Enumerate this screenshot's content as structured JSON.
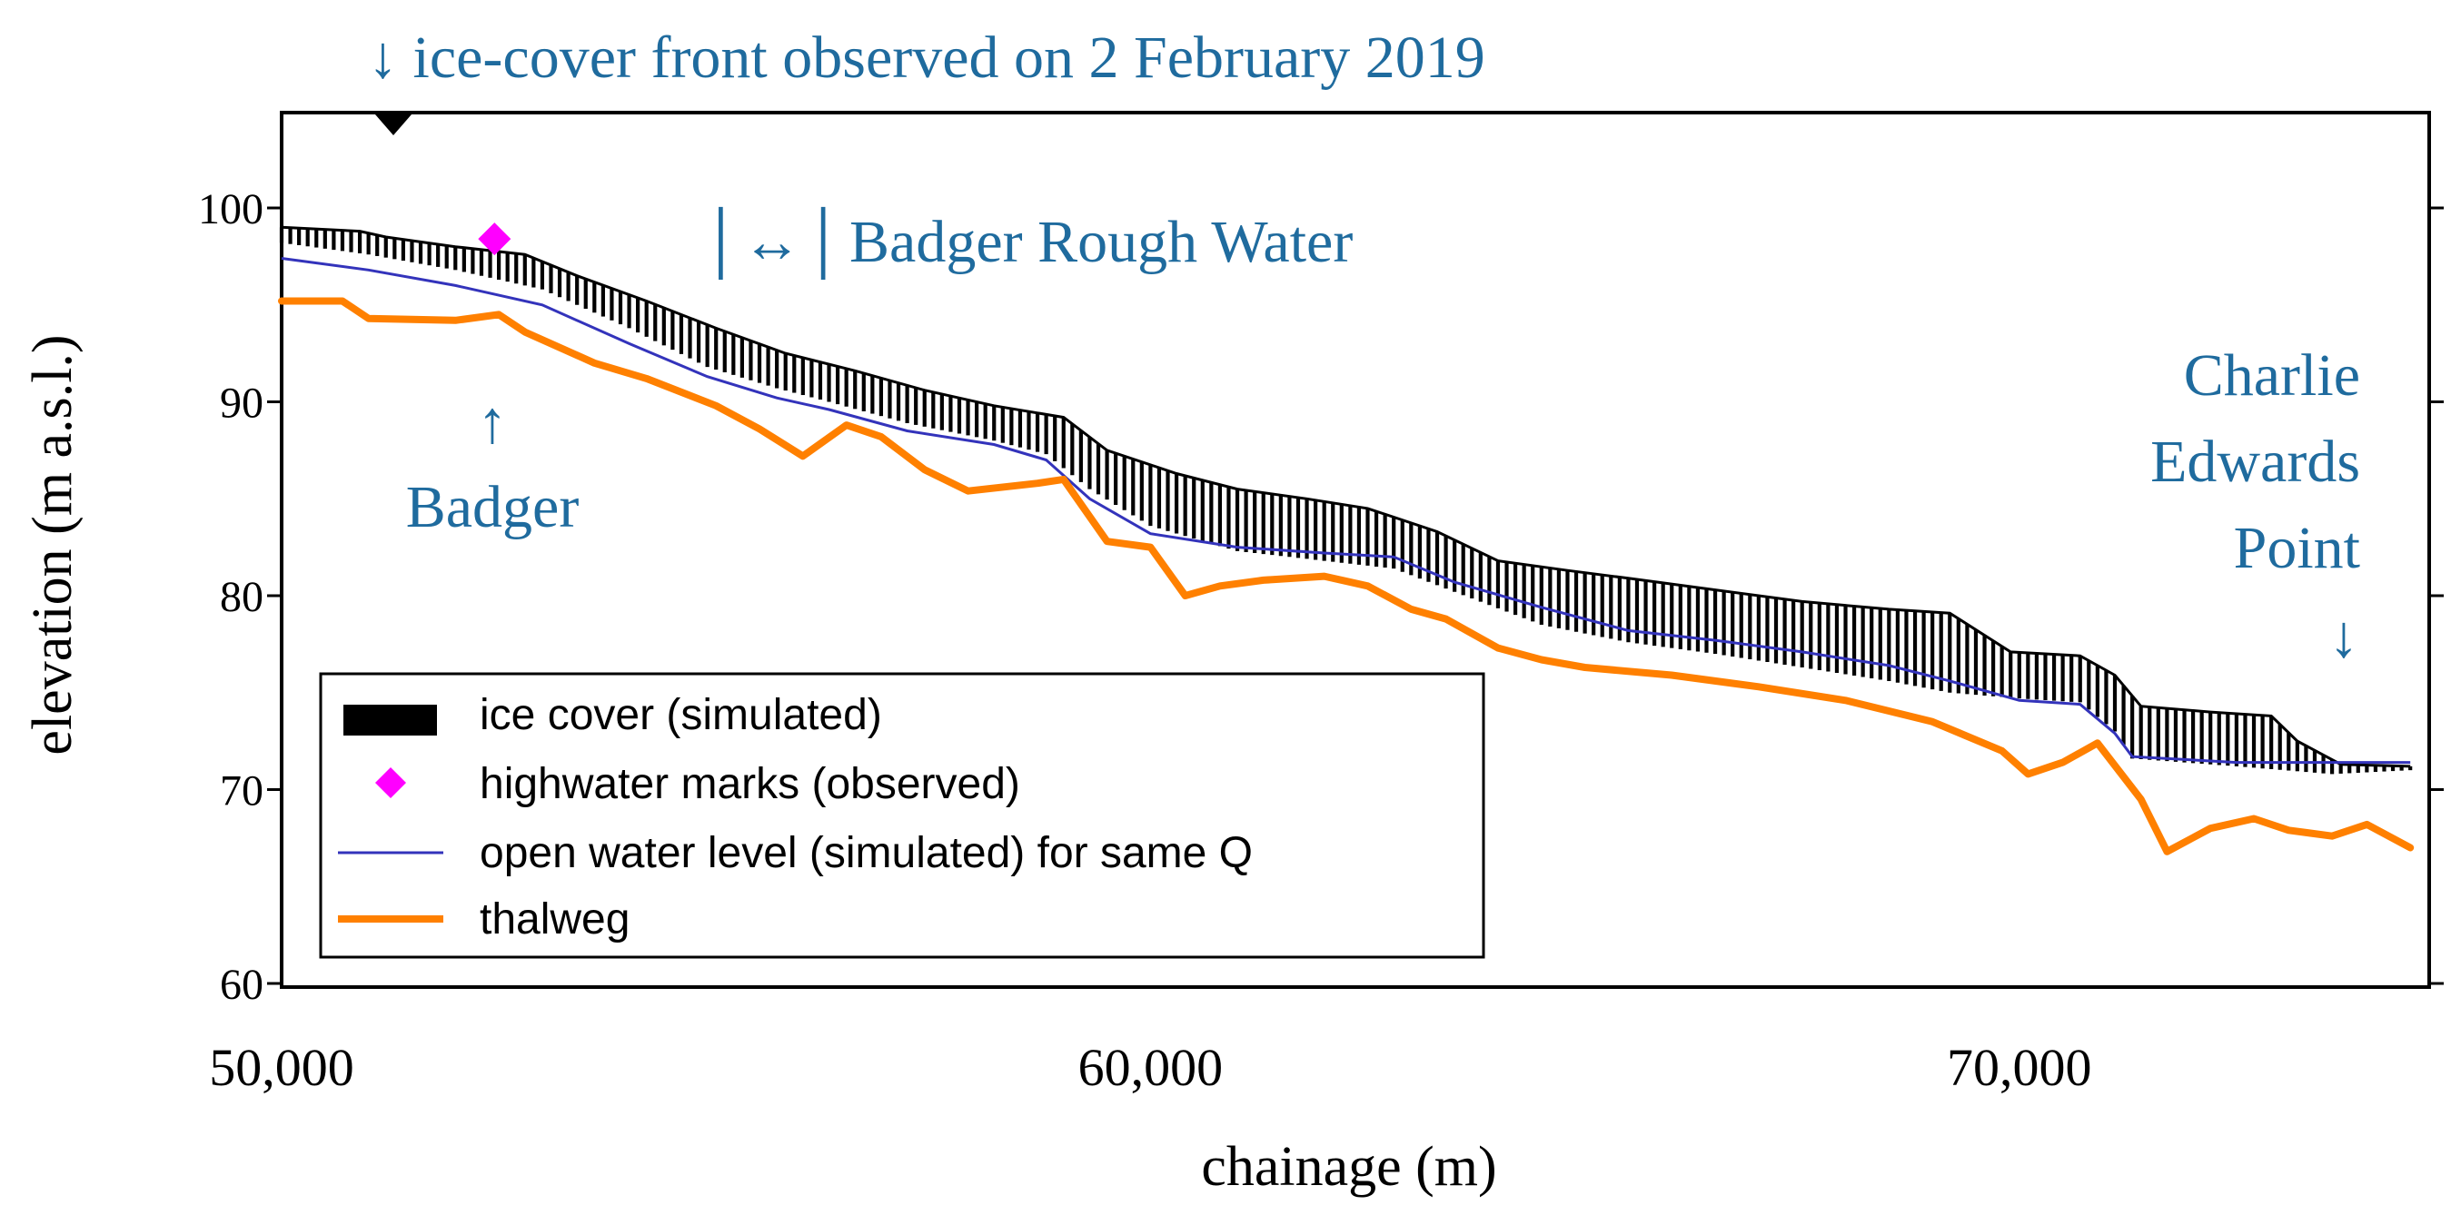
{
  "chart_data": {
    "type": "line",
    "title": "",
    "xlabel": "chainage (m)",
    "ylabel": "elevation (m a.s.l.)",
    "xlim": [
      50000,
      74500
    ],
    "ylim": [
      60,
      105
    ],
    "x_ticks": [
      50000,
      60000,
      70000
    ],
    "x_tick_labels": [
      "50,000",
      "60,000",
      "70,000"
    ],
    "y_ticks": [
      60,
      70,
      80,
      90,
      100
    ],
    "y_tick_labels": [
      "60",
      "70",
      "80",
      "90",
      "100"
    ],
    "legend": {
      "placement": "bottom-left",
      "entries": [
        {
          "label": "ice cover (simulated)",
          "color": "#000000",
          "kind": "bar"
        },
        {
          "label": "highwater marks (observed)",
          "color": "#ff00ff",
          "kind": "diamond"
        },
        {
          "label": "open water level (simulated) for same Q",
          "color": "#3333bb",
          "kind": "line"
        },
        {
          "label": "thalweg",
          "color": "#ff8000",
          "kind": "thickline"
        }
      ]
    },
    "colors": {
      "ice": "#000000",
      "open_water": "#3333bb",
      "thalweg": "#ff8000",
      "highwater": "#ff00ff",
      "annotation": "#1f6b9e"
    },
    "series": [
      {
        "name": "ice cover top (simulated)",
        "x": [
          50000,
          50900,
          51200,
          52000,
          52800,
          53400,
          54200,
          55000,
          55800,
          56600,
          57400,
          58200,
          59000,
          59500,
          60300,
          61000,
          61800,
          62500,
          63300,
          64000,
          64800,
          65500,
          66500,
          67500,
          68500,
          69200,
          69900,
          70700,
          71100,
          71400,
          72200,
          72900,
          73200,
          73700,
          74500
        ],
        "y": [
          99,
          98.8,
          98.5,
          98,
          97.6,
          96.5,
          95.2,
          93.8,
          92.5,
          91.6,
          90.6,
          89.8,
          89.2,
          87.5,
          86.3,
          85.5,
          85,
          84.5,
          83.3,
          81.8,
          81.3,
          80.9,
          80.3,
          79.7,
          79.3,
          79.1,
          77.1,
          76.9,
          75.9,
          74.3,
          74,
          73.8,
          72.5,
          71.3,
          71.2
        ]
      },
      {
        "name": "ice cover bottom (simulated)",
        "x": [
          50000,
          51000,
          52000,
          53000,
          54000,
          54900,
          55700,
          56300,
          57200,
          58200,
          58800,
          59300,
          60000,
          61000,
          62000,
          62800,
          63500,
          64500,
          65500,
          66500,
          67500,
          68500,
          69200,
          70000,
          70700,
          71100,
          71300,
          72500,
          73600,
          74500
        ],
        "y": [
          98.2,
          97.6,
          96.8,
          95.8,
          93.8,
          91.8,
          90.7,
          90,
          88.9,
          88,
          87.3,
          85.5,
          83.6,
          82.3,
          81.8,
          81.4,
          80.2,
          78.5,
          77.6,
          77,
          76.3,
          75.6,
          75,
          74.7,
          74.5,
          73,
          71.6,
          71.2,
          70.8,
          71
        ]
      },
      {
        "name": "open water level (simulated) for same Q",
        "x": [
          50000,
          51000,
          52000,
          53000,
          54000,
          54900,
          55700,
          56300,
          57200,
          58200,
          58800,
          59300,
          60000,
          61000,
          62000,
          62800,
          63500,
          64500,
          65500,
          66500,
          67500,
          68500,
          69200,
          70000,
          70700,
          71100,
          71300,
          72500,
          73600,
          74500
        ],
        "y": [
          97.4,
          96.8,
          96,
          95,
          93,
          91.3,
          90.2,
          89.6,
          88.5,
          87.8,
          87,
          85,
          83.2,
          82.5,
          82.2,
          82,
          80.7,
          79.4,
          78.2,
          77.7,
          77.1,
          76.4,
          75.6,
          74.6,
          74.4,
          72.9,
          71.7,
          71.4,
          71.4,
          71.4
        ]
      },
      {
        "name": "thalweg",
        "x": [
          50000,
          50700,
          51000,
          52000,
          52500,
          52800,
          53600,
          54200,
          55000,
          55500,
          56000,
          56500,
          56900,
          57400,
          57900,
          58700,
          59000,
          59500,
          60000,
          60400,
          60800,
          61300,
          62000,
          62500,
          63000,
          63400,
          64000,
          64500,
          65000,
          66000,
          67000,
          68000,
          69000,
          69800,
          70100,
          70500,
          70900,
          71400,
          71700,
          72200,
          72700,
          73100,
          73600,
          74000,
          74500
        ],
        "y": [
          95.2,
          95.2,
          94.3,
          94.2,
          94.5,
          93.6,
          92,
          91.2,
          89.8,
          88.6,
          87.2,
          88.8,
          88.2,
          86.5,
          85.4,
          85.8,
          86,
          82.8,
          82.5,
          80,
          80.5,
          80.8,
          81,
          80.5,
          79.3,
          78.8,
          77.3,
          76.7,
          76.3,
          75.9,
          75.3,
          74.6,
          73.5,
          72,
          70.8,
          71.4,
          72.4,
          69.5,
          66.8,
          68,
          68.5,
          67.9,
          67.6,
          68.2,
          67
        ]
      }
    ],
    "highwater_marks": [
      {
        "x": 52450,
        "y": 98.4
      }
    ],
    "annotations": {
      "ice_front": "↓ ice-cover front observed on 2 February 2019",
      "rough_water_marker": "│↔│",
      "rough_water": "Badger Rough Water",
      "badger_arrow": "↑",
      "badger": "Badger",
      "charlie_lines": [
        "Charlie",
        "Edwards",
        "Point"
      ],
      "charlie_arrow": "↓"
    }
  }
}
